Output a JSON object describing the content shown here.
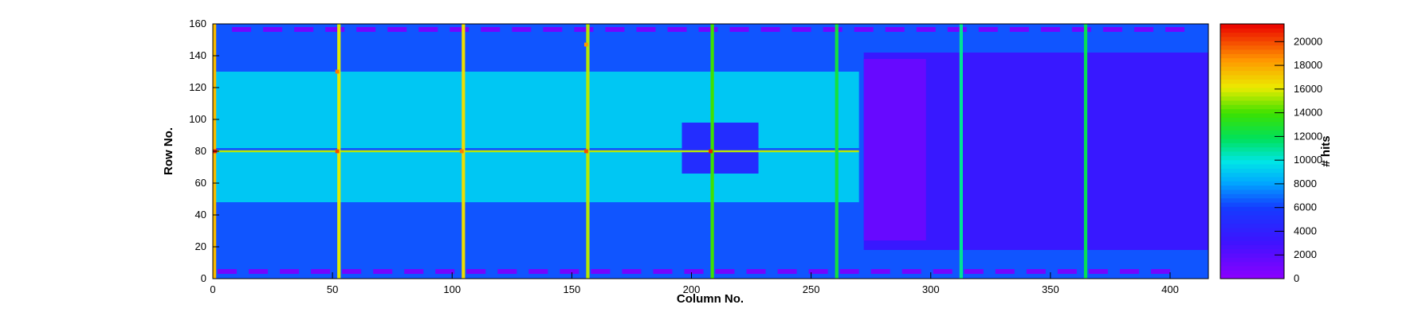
{
  "chart_data": {
    "type": "heatmap",
    "title": "",
    "xlabel": "Column No.",
    "ylabel": "Row No.",
    "zlabel": "# hits",
    "xlim": [
      0,
      416
    ],
    "ylim": [
      0,
      160
    ],
    "zlim": [
      0,
      21500
    ],
    "x_ticks": [
      0,
      50,
      100,
      150,
      200,
      250,
      300,
      350,
      400
    ],
    "y_ticks": [
      0,
      20,
      40,
      60,
      80,
      100,
      120,
      140,
      160
    ],
    "z_ticks": [
      0,
      2000,
      4000,
      6000,
      8000,
      10000,
      12000,
      14000,
      16000,
      18000,
      20000
    ],
    "colormap": "rainbow (violet-blue-cyan-green-yellow-red)",
    "background_level": 6500,
    "regions": [
      {
        "label": "upper-left readout area",
        "x": [
          0,
          270
        ],
        "y": [
          82,
          130
        ],
        "level": 9000
      },
      {
        "label": "lower-left readout area",
        "x": [
          0,
          270
        ],
        "y": [
          48,
          80
        ],
        "level": 9000
      },
      {
        "label": "right matrix block",
        "x": [
          272,
          416
        ],
        "y": [
          18,
          142
        ],
        "level": 3500
      },
      {
        "label": "dense violet block",
        "x": [
          272,
          298
        ],
        "y": [
          24,
          138
        ],
        "level": 1500
      },
      {
        "label": "central pad",
        "x": [
          196,
          228
        ],
        "y": [
          66,
          98
        ],
        "level": 5000
      }
    ],
    "hot_columns": [
      {
        "x": 0,
        "level": 17500
      },
      {
        "x": 52,
        "level": 16000
      },
      {
        "x": 104,
        "level": 16500
      },
      {
        "x": 156,
        "level": 15500
      },
      {
        "x": 208,
        "level": 14000
      },
      {
        "x": 260,
        "level": 12500
      },
      {
        "x": 312,
        "level": 11000
      },
      {
        "x": 364,
        "level": 12000
      }
    ],
    "hot_rows": [
      {
        "y": 80,
        "x": [
          0,
          270
        ],
        "level": 15500
      }
    ],
    "hot_spots": [
      {
        "x": 1,
        "y": 80,
        "level": 21000
      },
      {
        "x": 52,
        "y": 80,
        "level": 20000
      },
      {
        "x": 104,
        "y": 80,
        "level": 19000
      },
      {
        "x": 156,
        "y": 80,
        "level": 20000
      },
      {
        "x": 208,
        "y": 80,
        "level": 21000
      },
      {
        "x": 52,
        "y": 130,
        "level": 19000
      },
      {
        "x": 156,
        "y": 147,
        "level": 18500
      }
    ],
    "pad_rows": [
      {
        "y": [
          155,
          158
        ],
        "x_from": 8,
        "x_to": 410,
        "pitch": 13,
        "level": 1000
      },
      {
        "y": [
          3,
          6
        ],
        "x_from": 2,
        "x_to": 410,
        "pitch": 13,
        "level": 1000
      }
    ]
  }
}
